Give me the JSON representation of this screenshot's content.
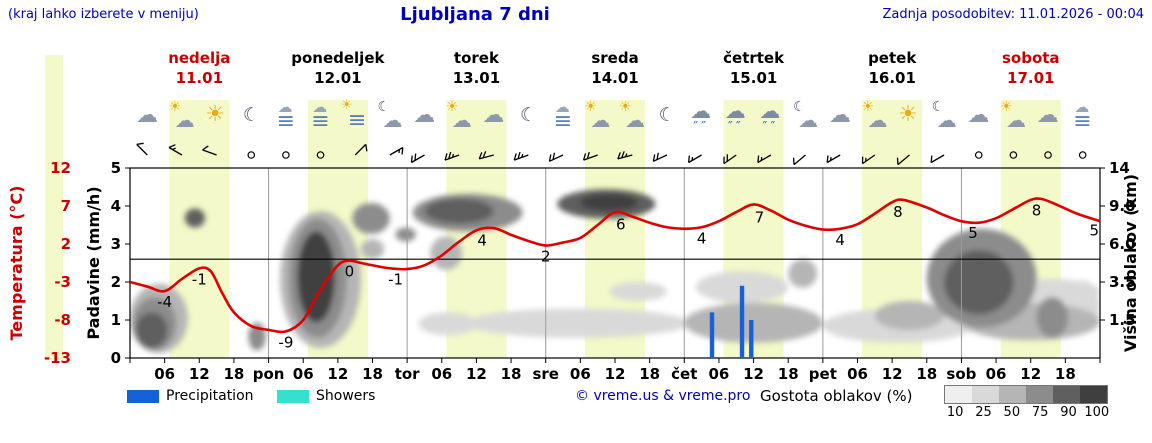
{
  "header": {
    "hint": "(kraj lahko izberete v meniju)",
    "title": "Ljubljana 7 dni",
    "updated": "Zadnja posodobitev: 11.01.2026 - 00:04"
  },
  "days": [
    {
      "name": "nedelja",
      "date": "11.01",
      "accent": true
    },
    {
      "name": "ponedeljek",
      "date": "12.01",
      "accent": false
    },
    {
      "name": "torek",
      "date": "13.01",
      "accent": false
    },
    {
      "name": "sreda",
      "date": "14.01",
      "accent": false
    },
    {
      "name": "četrtek",
      "date": "15.01",
      "accent": false
    },
    {
      "name": "petek",
      "date": "16.01",
      "accent": false
    },
    {
      "name": "sobota",
      "date": "17.01",
      "accent": true
    }
  ],
  "axes": {
    "temp_label": "Temperatura (°C)",
    "temp_ticks": [
      12,
      7,
      2,
      -3,
      -8,
      -13
    ],
    "precip_label": "Padavine (mm/h)",
    "precip_ticks": [
      0,
      1,
      2,
      3,
      4,
      5
    ],
    "cloud_label": "Višina oblakov (km)",
    "cloud_ticks": [
      {
        "label": "1.5",
        "km": 1.5
      },
      {
        "label": "3.5",
        "km": 3.5
      },
      {
        "label": "6.0",
        "km": 6
      },
      {
        "label": "9.0",
        "km": 9
      },
      {
        "label": "14",
        "km": 14
      }
    ],
    "hour_labels": [
      "06",
      "12",
      "18"
    ],
    "day_abbrevs": [
      "pon",
      "tor",
      "sre",
      "čet",
      "pet",
      "sob"
    ]
  },
  "legend": {
    "precipitation": "Precipitation",
    "showers": "Showers",
    "copyright": "© vreme.us & vreme.pro",
    "cloud_density_label": "Gostota oblakov (%)",
    "density_steps": [
      {
        "label": "10",
        "color": "#efefef"
      },
      {
        "label": "25",
        "color": "#d9d9d9"
      },
      {
        "label": "50",
        "color": "#b5b5b5"
      },
      {
        "label": "75",
        "color": "#8c8c8c"
      },
      {
        "label": "90",
        "color": "#5f5f5f"
      },
      {
        "label": "100",
        "color": "#3f3f3f"
      }
    ]
  },
  "colors": {
    "accent_red": "#cc0000",
    "link_blue": "#0000bb",
    "temp_line": "#e00000",
    "precip_bar": "#1661d8",
    "showers": "#35e0cf",
    "daylight_band": "#f3f9c8"
  },
  "chart_data": {
    "type": "line",
    "title": "Ljubljana 7 dni",
    "x_axis": {
      "unit": "hours",
      "range_hours": [
        0,
        168
      ],
      "tick_step_hours": 6
    },
    "temp_axis_range": [
      -13,
      12
    ],
    "precip_axis_range": [
      0,
      5
    ],
    "cloud_axis_km": [
      0,
      1.5,
      3.5,
      6,
      9,
      14
    ],
    "freezing_level_c": 0,
    "daylight": {
      "start_hour": 6.8,
      "end_hour": 17.2
    },
    "temperature_c": [
      [
        0,
        -3
      ],
      [
        3,
        -3.6
      ],
      [
        6,
        -4.2
      ],
      [
        9,
        -2.6
      ],
      [
        12,
        -1.2
      ],
      [
        14,
        -1.6
      ],
      [
        16,
        -4.5
      ],
      [
        18,
        -7
      ],
      [
        21,
        -8.8
      ],
      [
        24,
        -9.3
      ],
      [
        27,
        -9.5
      ],
      [
        30,
        -8
      ],
      [
        33,
        -4
      ],
      [
        36,
        -0.8
      ],
      [
        38,
        -0.2
      ],
      [
        40,
        -0.5
      ],
      [
        42,
        -0.8
      ],
      [
        45,
        -1.2
      ],
      [
        48,
        -1.3
      ],
      [
        51,
        -0.8
      ],
      [
        54,
        0.5
      ],
      [
        57,
        2.3
      ],
      [
        60,
        3.8
      ],
      [
        63,
        4.1
      ],
      [
        66,
        3.2
      ],
      [
        69,
        2.4
      ],
      [
        72,
        1.8
      ],
      [
        75,
        2.2
      ],
      [
        78,
        2.8
      ],
      [
        81,
        4.5
      ],
      [
        84,
        6.2
      ],
      [
        87,
        5.6
      ],
      [
        90,
        4.8
      ],
      [
        93,
        4.2
      ],
      [
        96,
        4.0
      ],
      [
        99,
        4.2
      ],
      [
        102,
        5.0
      ],
      [
        105,
        6.2
      ],
      [
        108,
        7.2
      ],
      [
        111,
        6.4
      ],
      [
        114,
        5.2
      ],
      [
        117,
        4.4
      ],
      [
        120,
        3.9
      ],
      [
        123,
        4.0
      ],
      [
        126,
        4.6
      ],
      [
        129,
        6.0
      ],
      [
        132,
        7.5
      ],
      [
        134,
        7.8
      ],
      [
        138,
        6.8
      ],
      [
        141,
        5.8
      ],
      [
        144,
        5.0
      ],
      [
        147,
        4.8
      ],
      [
        150,
        5.4
      ],
      [
        153,
        6.6
      ],
      [
        156,
        7.8
      ],
      [
        158,
        7.9
      ],
      [
        161,
        7.0
      ],
      [
        164,
        6.0
      ],
      [
        168,
        5.0
      ]
    ],
    "temperature_labels": [
      {
        "h": 6,
        "text": "-4"
      },
      {
        "h": 12,
        "text": "-1"
      },
      {
        "h": 27,
        "text": "-9"
      },
      {
        "h": 38,
        "text": "0"
      },
      {
        "h": 46,
        "text": "-1"
      },
      {
        "h": 61,
        "text": "4"
      },
      {
        "h": 72,
        "text": "2"
      },
      {
        "h": 85,
        "text": "6"
      },
      {
        "h": 99,
        "text": "4"
      },
      {
        "h": 109,
        "text": "7"
      },
      {
        "h": 123,
        "text": "4"
      },
      {
        "h": 133,
        "text": "8"
      },
      {
        "h": 146,
        "text": "5"
      },
      {
        "h": 157,
        "text": "8"
      },
      {
        "h": 167,
        "text": "5"
      }
    ],
    "precipitation_mmh": [
      {
        "h": 100.8,
        "v": 1.2
      },
      {
        "h": 106.0,
        "v": 1.9
      },
      {
        "h": 107.6,
        "v": 1.0
      }
    ],
    "wind": [
      {
        "h": 3,
        "dir": 315,
        "kt": 10
      },
      {
        "h": 9,
        "dir": 300,
        "kt": 15
      },
      {
        "h": 15,
        "dir": 290,
        "kt": 10
      },
      {
        "h": 21,
        "dir": 0,
        "kt": 0
      },
      {
        "h": 27,
        "dir": 0,
        "kt": 0
      },
      {
        "h": 33,
        "dir": 0,
        "kt": 0
      },
      {
        "h": 39,
        "dir": 45,
        "kt": 10
      },
      {
        "h": 45,
        "dir": 60,
        "kt": 15
      },
      {
        "h": 51,
        "dir": 240,
        "kt": 20
      },
      {
        "h": 57,
        "dir": 250,
        "kt": 25
      },
      {
        "h": 63,
        "dir": 255,
        "kt": 20
      },
      {
        "h": 69,
        "dir": 250,
        "kt": 25
      },
      {
        "h": 75,
        "dir": 245,
        "kt": 20
      },
      {
        "h": 81,
        "dir": 250,
        "kt": 20
      },
      {
        "h": 87,
        "dir": 255,
        "kt": 25
      },
      {
        "h": 93,
        "dir": 245,
        "kt": 20
      },
      {
        "h": 99,
        "dir": 240,
        "kt": 15
      },
      {
        "h": 105,
        "dir": 235,
        "kt": 20
      },
      {
        "h": 111,
        "dir": 240,
        "kt": 15
      },
      {
        "h": 117,
        "dir": 230,
        "kt": 10
      },
      {
        "h": 123,
        "dir": 240,
        "kt": 15
      },
      {
        "h": 129,
        "dir": 235,
        "kt": 15
      },
      {
        "h": 135,
        "dir": 230,
        "kt": 10
      },
      {
        "h": 141,
        "dir": 240,
        "kt": 10
      },
      {
        "h": 147,
        "dir": 0,
        "kt": 0
      },
      {
        "h": 153,
        "dir": 0,
        "kt": 0
      },
      {
        "h": 159,
        "dir": 0,
        "kt": 0
      },
      {
        "h": 165,
        "dir": 0,
        "kt": 0
      }
    ],
    "weather_symbols": [
      "cloud",
      "cloud-sun",
      "sun",
      "moon",
      "fog",
      "fog",
      "fog-sun",
      "cloud-moon",
      "cloud",
      "cloud-sun",
      "cloud",
      "moon",
      "fog",
      "cloud-sun",
      "cloud-sun",
      "moon",
      "rain-cloud",
      "rain-cloud",
      "rain-cloud",
      "cloud-moon",
      "cloud",
      "cloud-sun",
      "sun",
      "cloud-moon",
      "cloud",
      "cloud-sun",
      "cloud",
      "fog"
    ],
    "cloud_cover": [
      {
        "h0": 0,
        "h1": 10,
        "km0": 0.2,
        "km1": 3.4,
        "density": 50
      },
      {
        "h0": 0.5,
        "h1": 8,
        "km0": 0.3,
        "km1": 2.7,
        "density": 75
      },
      {
        "h0": 1,
        "h1": 6.5,
        "km0": 0.4,
        "km1": 1.9,
        "density": 90
      },
      {
        "h0": 9.5,
        "h1": 13,
        "km0": 7.3,
        "km1": 8.8,
        "density": 90
      },
      {
        "h0": 20.5,
        "h1": 23.5,
        "km0": 0.3,
        "km1": 1.4,
        "density": 75
      },
      {
        "h0": 26,
        "h1": 40,
        "km0": 0.4,
        "km1": 8.6,
        "density": 50
      },
      {
        "h0": 27.5,
        "h1": 37.5,
        "km0": 0.8,
        "km1": 8.0,
        "density": 75
      },
      {
        "h0": 29,
        "h1": 35.5,
        "km0": 1.4,
        "km1": 7.0,
        "density": 100
      },
      {
        "h0": 38.5,
        "h1": 45,
        "km0": 6.8,
        "km1": 9.4,
        "density": 75
      },
      {
        "h0": 40,
        "h1": 44,
        "km0": 5.0,
        "km1": 6.4,
        "density": 50
      },
      {
        "h0": 46,
        "h1": 49.5,
        "km0": 6.2,
        "km1": 7.3,
        "density": 75
      },
      {
        "h0": 49,
        "h1": 68,
        "km0": 7.0,
        "km1": 10.6,
        "density": 75
      },
      {
        "h0": 51,
        "h1": 63,
        "km0": 7.6,
        "km1": 10.0,
        "density": 90
      },
      {
        "h0": 52,
        "h1": 57.5,
        "km0": 4.3,
        "km1": 6.6,
        "density": 50
      },
      {
        "h0": 50,
        "h1": 60,
        "km0": 0.9,
        "km1": 1.9,
        "density": 25
      },
      {
        "h0": 58,
        "h1": 97,
        "km0": 0.8,
        "km1": 2.1,
        "density": 25
      },
      {
        "h0": 74,
        "h1": 91,
        "km0": 8.0,
        "km1": 11.2,
        "density": 90
      },
      {
        "h0": 78,
        "h1": 88,
        "km0": 8.6,
        "km1": 10.6,
        "density": 100
      },
      {
        "h0": 83,
        "h1": 93,
        "km0": 2.5,
        "km1": 3.5,
        "density": 25
      },
      {
        "h0": 96,
        "h1": 120,
        "km0": 0.6,
        "km1": 2.4,
        "density": 50
      },
      {
        "h0": 98,
        "h1": 114,
        "km0": 2.4,
        "km1": 4.2,
        "density": 25
      },
      {
        "h0": 114,
        "h1": 119,
        "km0": 3.2,
        "km1": 5.0,
        "density": 50
      },
      {
        "h0": 120,
        "h1": 146,
        "km0": 0.6,
        "km1": 2.1,
        "density": 25
      },
      {
        "h0": 129,
        "h1": 141,
        "km0": 1.1,
        "km1": 2.5,
        "density": 50
      },
      {
        "h0": 138,
        "h1": 157,
        "km0": 1.2,
        "km1": 7.2,
        "density": 75
      },
      {
        "h0": 141,
        "h1": 153,
        "km0": 1.8,
        "km1": 5.6,
        "density": 90
      },
      {
        "h0": 144,
        "h1": 168,
        "km0": 0.7,
        "km1": 2.4,
        "density": 50
      },
      {
        "h0": 150,
        "h1": 168,
        "km0": 2.4,
        "km1": 3.7,
        "density": 25
      },
      {
        "h0": 157,
        "h1": 162.5,
        "km0": 0.8,
        "km1": 2.7,
        "density": 75
      },
      {
        "h0": 162,
        "h1": 168,
        "km0": 1.0,
        "km1": 3.6,
        "density": 25
      }
    ]
  }
}
